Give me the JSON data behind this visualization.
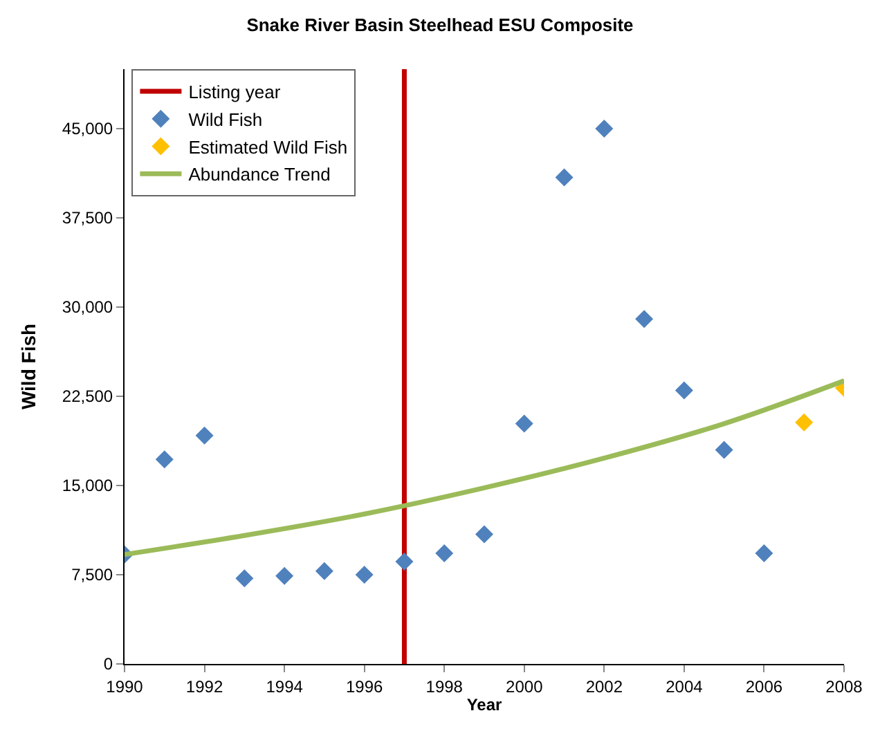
{
  "chart_data": {
    "type": "scatter",
    "title": "Snake River Basin Steelhead ESU Composite",
    "xlabel": "Year",
    "ylabel": "Wild Fish",
    "x": [
      1990,
      1991,
      1992,
      1993,
      1994,
      1995,
      1996,
      1997,
      1998,
      1999,
      2000,
      2001,
      2002,
      2003,
      2004,
      2005,
      2006
    ],
    "series": [
      {
        "name": "Listing year",
        "type": "line",
        "color": "#c00000",
        "marker": "none",
        "x": [
          1997,
          1997
        ],
        "values": [
          0,
          50000
        ]
      },
      {
        "name": "Wild Fish",
        "color": "#4f81bd",
        "values": [
          9200,
          17200,
          19200,
          7200,
          7400,
          7800,
          7500,
          8600,
          9300,
          10900,
          20200,
          40900,
          45000,
          29000,
          23000,
          18000,
          9300
        ]
      },
      {
        "name": "Estimated Wild Fish",
        "color": "#ffc000",
        "x": [
          2007,
          2008
        ],
        "values": [
          20300,
          23200
        ]
      },
      {
        "name": "Abundance Trend",
        "type": "line",
        "color": "#9bbb59",
        "marker": "none",
        "x": [
          1990,
          1993,
          1996,
          1999,
          2002,
          2005,
          2008
        ],
        "values": [
          9200,
          10800,
          12600,
          14800,
          17300,
          20200,
          23800
        ]
      }
    ],
    "marker": "diamond",
    "legend": "top left",
    "xlim": [
      1990,
      2008
    ],
    "xticks": [
      1990,
      1992,
      1994,
      1996,
      1998,
      2000,
      2002,
      2004,
      2006,
      2008
    ],
    "ylim": [
      0,
      50000
    ],
    "yticks": [
      0,
      {
        "value": 7500,
        "label": "7,500"
      },
      {
        "value": 15000,
        "label": "15,000"
      },
      {
        "value": 22500,
        "label": "22,500"
      },
      {
        "value": 30000,
        "label": "30,000"
      },
      {
        "value": 37500,
        "label": "37,500"
      },
      {
        "value": 45000,
        "label": "45,000"
      }
    ]
  }
}
